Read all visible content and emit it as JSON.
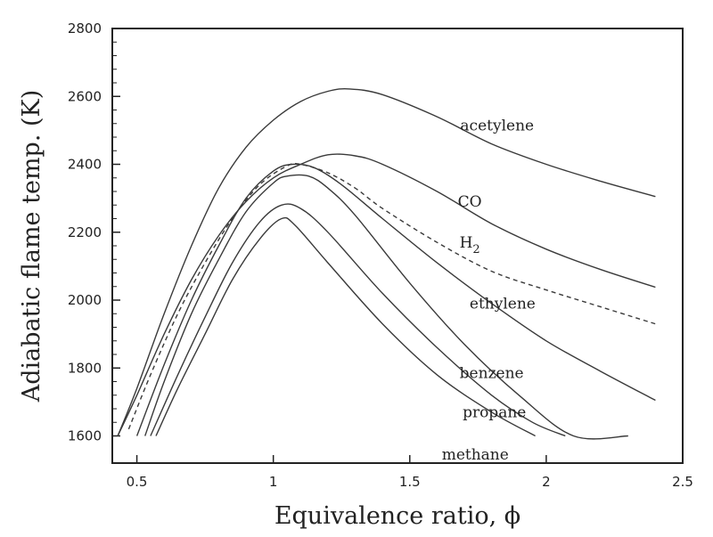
{
  "chart_data": {
    "type": "line",
    "title": "",
    "xlabel": "Equivalence ratio, ϕ",
    "ylabel": "Adiabatic flame temp. (K)",
    "xlim": [
      0.41,
      2.5
    ],
    "ylim": [
      1520,
      2800
    ],
    "x_ticks": [
      0.5,
      1,
      1.5,
      2,
      2.5
    ],
    "y_ticks": [
      1600,
      1800,
      2000,
      2200,
      2400,
      2600,
      2800
    ],
    "x_tick_labels": [
      "0.5",
      "1",
      "1.5",
      "2",
      "2.5"
    ],
    "y_tick_labels": [
      "1600",
      "1800",
      "2000",
      "2200",
      "2400",
      "2600",
      "2800"
    ],
    "grid": false,
    "series": [
      {
        "name": "acetylene",
        "dashed": false,
        "points": [
          [
            0.43,
            1600
          ],
          [
            0.5,
            1740
          ],
          [
            0.6,
            1960
          ],
          [
            0.7,
            2160
          ],
          [
            0.8,
            2330
          ],
          [
            0.9,
            2450
          ],
          [
            1.0,
            2530
          ],
          [
            1.1,
            2585
          ],
          [
            1.2,
            2615
          ],
          [
            1.28,
            2622
          ],
          [
            1.4,
            2605
          ],
          [
            1.6,
            2540
          ],
          [
            1.8,
            2460
          ],
          [
            2.0,
            2400
          ],
          [
            2.2,
            2350
          ],
          [
            2.4,
            2305
          ]
        ]
      },
      {
        "name": "CO",
        "dashed": false,
        "points": [
          [
            0.43,
            1600
          ],
          [
            0.5,
            1720
          ],
          [
            0.6,
            1900
          ],
          [
            0.7,
            2060
          ],
          [
            0.8,
            2190
          ],
          [
            0.9,
            2290
          ],
          [
            1.0,
            2360
          ],
          [
            1.1,
            2400
          ],
          [
            1.2,
            2428
          ],
          [
            1.3,
            2425
          ],
          [
            1.4,
            2400
          ],
          [
            1.6,
            2320
          ],
          [
            1.8,
            2225
          ],
          [
            2.0,
            2150
          ],
          [
            2.2,
            2090
          ],
          [
            2.4,
            2038
          ]
        ]
      },
      {
        "name": "H2",
        "dashed": true,
        "points": [
          [
            0.47,
            1620
          ],
          [
            0.55,
            1780
          ],
          [
            0.65,
            1960
          ],
          [
            0.75,
            2110
          ],
          [
            0.85,
            2240
          ],
          [
            0.95,
            2340
          ],
          [
            1.05,
            2395
          ],
          [
            1.1,
            2400
          ],
          [
            1.2,
            2375
          ],
          [
            1.3,
            2330
          ],
          [
            1.4,
            2270
          ],
          [
            1.6,
            2170
          ],
          [
            1.8,
            2085
          ],
          [
            2.0,
            2030
          ],
          [
            2.2,
            1980
          ],
          [
            2.4,
            1930
          ]
        ]
      },
      {
        "name": "ethylene",
        "dashed": false,
        "points": [
          [
            0.5,
            1600
          ],
          [
            0.6,
            1810
          ],
          [
            0.7,
            2000
          ],
          [
            0.8,
            2160
          ],
          [
            0.9,
            2300
          ],
          [
            1.0,
            2380
          ],
          [
            1.07,
            2400
          ],
          [
            1.15,
            2390
          ],
          [
            1.25,
            2340
          ],
          [
            1.4,
            2240
          ],
          [
            1.6,
            2110
          ],
          [
            1.8,
            1990
          ],
          [
            2.0,
            1880
          ],
          [
            2.2,
            1790
          ],
          [
            2.4,
            1705
          ]
        ]
      },
      {
        "name": "benzene",
        "dashed": false,
        "points": [
          [
            0.53,
            1600
          ],
          [
            0.6,
            1760
          ],
          [
            0.7,
            1960
          ],
          [
            0.8,
            2120
          ],
          [
            0.9,
            2260
          ],
          [
            1.0,
            2345
          ],
          [
            1.05,
            2365
          ],
          [
            1.13,
            2365
          ],
          [
            1.2,
            2330
          ],
          [
            1.3,
            2250
          ],
          [
            1.5,
            2050
          ],
          [
            1.7,
            1870
          ],
          [
            1.9,
            1720
          ],
          [
            2.1,
            1600
          ],
          [
            2.3,
            1600
          ]
        ]
      },
      {
        "name": "propane",
        "dashed": false,
        "points": [
          [
            0.55,
            1600
          ],
          [
            0.65,
            1780
          ],
          [
            0.75,
            1950
          ],
          [
            0.85,
            2110
          ],
          [
            0.95,
            2230
          ],
          [
            1.03,
            2280
          ],
          [
            1.1,
            2270
          ],
          [
            1.2,
            2200
          ],
          [
            1.4,
            2020
          ],
          [
            1.6,
            1860
          ],
          [
            1.8,
            1720
          ],
          [
            1.95,
            1640
          ],
          [
            2.07,
            1600
          ]
        ]
      },
      {
        "name": "methane",
        "dashed": false,
        "points": [
          [
            0.57,
            1600
          ],
          [
            0.65,
            1740
          ],
          [
            0.75,
            1900
          ],
          [
            0.85,
            2060
          ],
          [
            0.95,
            2180
          ],
          [
            1.03,
            2240
          ],
          [
            1.08,
            2220
          ],
          [
            1.2,
            2110
          ],
          [
            1.4,
            1930
          ],
          [
            1.6,
            1780
          ],
          [
            1.8,
            1670
          ],
          [
            1.96,
            1600
          ]
        ]
      }
    ],
    "labels": [
      {
        "text": "acetylene",
        "x": 1.82,
        "y": 2500
      },
      {
        "text": "CO",
        "x": 1.72,
        "y": 2275
      },
      {
        "text": "H",
        "sub": "2",
        "x": 1.72,
        "y": 2155
      },
      {
        "text": "ethylene",
        "x": 1.84,
        "y": 1975
      },
      {
        "text": "benzene",
        "x": 1.8,
        "y": 1770
      },
      {
        "text": "propane",
        "x": 1.81,
        "y": 1655
      },
      {
        "text": "methane",
        "x": 1.74,
        "y": 1530
      }
    ]
  }
}
